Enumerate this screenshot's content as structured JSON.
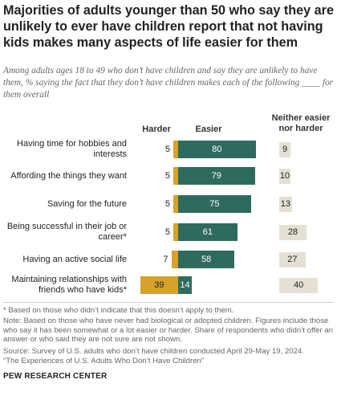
{
  "title": "Majorities of adults younger than 50 who say they are unlikely to ever have children report that not having kids makes many aspects of life easier for them",
  "subtitle": "Among adults ages 18 to 49 who don’t have children and say they are unlikely to have them, % saying the fact that they don’t have children makes each of the following ____ for them overall",
  "chart_data": {
    "type": "bar",
    "orientation": "horizontal",
    "stacked": "diverging",
    "categories": [
      "Having time for hobbies and interests",
      "Affording the things they want",
      "Saving for the future",
      "Being successful in their job or career*",
      "Having an active social life",
      "Maintaining relationships with friends who have kids*"
    ],
    "series": [
      {
        "name": "Harder",
        "color": "#d6a22c",
        "values": [
          5,
          5,
          5,
          5,
          7,
          39
        ]
      },
      {
        "name": "Easier",
        "color": "#2e6b5e",
        "values": [
          80,
          79,
          75,
          61,
          58,
          14
        ]
      },
      {
        "name": "Neither easier nor harder",
        "color": "#e4e0d4",
        "values": [
          9,
          10,
          13,
          28,
          27,
          40
        ]
      }
    ],
    "column_headers": {
      "harder": "Harder",
      "easier": "Easier",
      "neither": "Neither easier nor harder"
    }
  },
  "footnote": "* Based on those who didn’t indicate that this doesn’t apply to them.",
  "note": "Note: Based on those who have never had biological or adopted children. Figures include those who say it has been somewhat or a lot easier or harder. Share of respondents who didn’t offer an answer or who said they are not sure are not shown.",
  "source": "Source: Survey of U.S. adults who don’t have children conducted April 29-May 19, 2024.",
  "report": "“The Experiences of U.S. Adults Who Don’t Have Children”",
  "org": "PEW RESEARCH CENTER"
}
